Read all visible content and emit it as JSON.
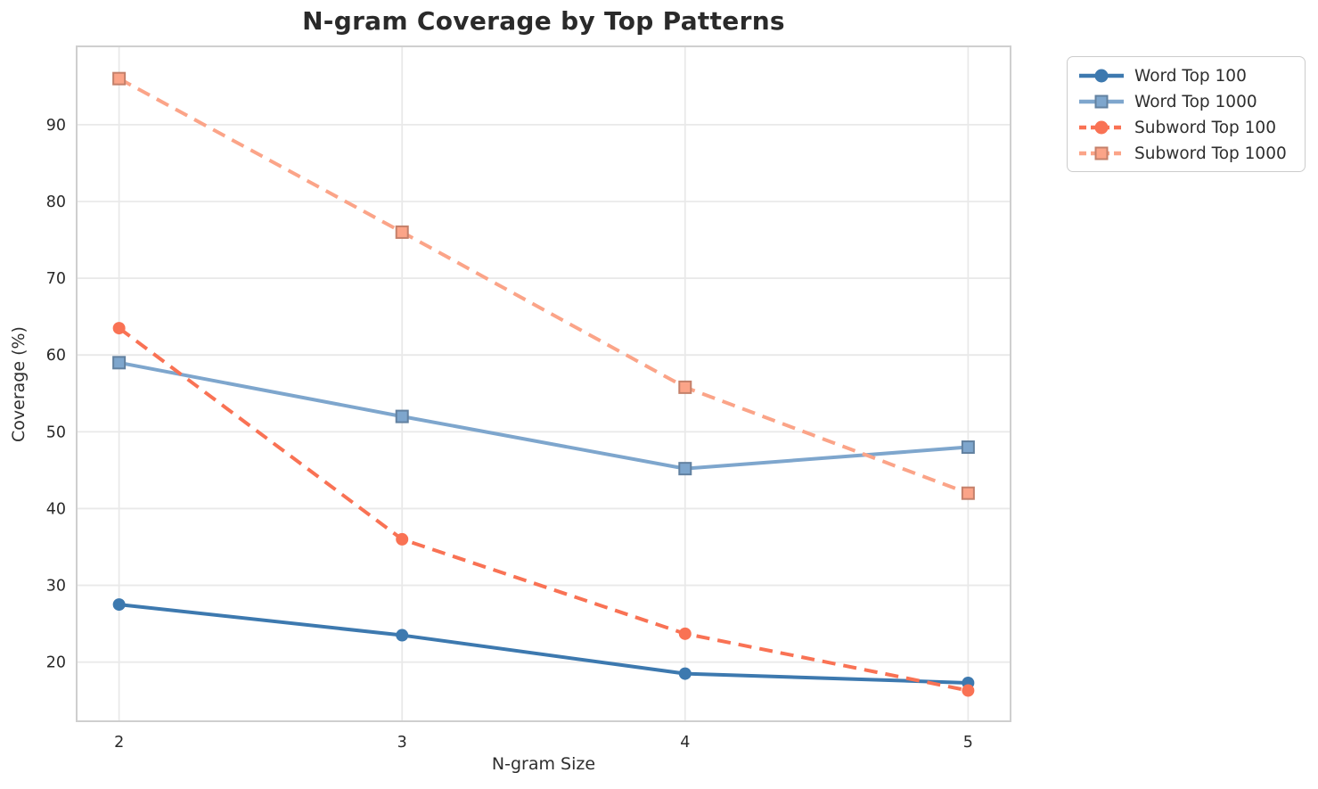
{
  "title": "N-gram Coverage by Top Patterns",
  "chart_data": {
    "type": "line",
    "title": "N-gram Coverage by Top Patterns",
    "xlabel": "N-gram Size",
    "ylabel": "Coverage (%)",
    "x": [
      2,
      3,
      4,
      5
    ],
    "xticks": [
      2,
      3,
      4,
      5
    ],
    "yticks": [
      20,
      30,
      40,
      50,
      60,
      70,
      80,
      90
    ],
    "xlim": [
      1.85,
      5.15
    ],
    "ylim": [
      12.3,
      100.2
    ],
    "grid": true,
    "legend_position": "outside-top-right",
    "series": [
      {
        "name": "Word Top 100",
        "values": [
          27.5,
          23.5,
          18.5,
          17.3
        ],
        "color": "#3d79af",
        "marker": "circle",
        "dash": false
      },
      {
        "name": "Word Top 1000",
        "values": [
          59.0,
          52.0,
          45.2,
          48.0
        ],
        "color": "#7ea6cd",
        "marker": "square",
        "dash": false
      },
      {
        "name": "Subword Top 100",
        "values": [
          63.5,
          36.0,
          23.7,
          16.3
        ],
        "color": "#f97254",
        "marker": "circle",
        "dash": true
      },
      {
        "name": "Subword Top 1000",
        "values": [
          96.0,
          76.0,
          55.8,
          42.0
        ],
        "color": "#fba488",
        "marker": "square",
        "dash": true
      }
    ],
    "style": {
      "grid_color": "#e9e9e9",
      "spine_color": "#cfcfcf",
      "text_color": "#2a2a2a",
      "background": "#ffffff"
    }
  }
}
